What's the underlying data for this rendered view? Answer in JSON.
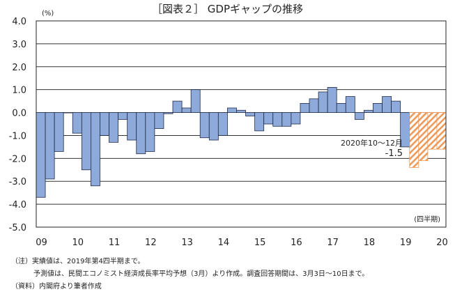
{
  "chart_data": {
    "type": "bar",
    "title": "［図表２］ GDPギャップの推移",
    "unit_label": "(%)",
    "period_label": "(四半期)",
    "ylim": [
      -5.0,
      4.0
    ],
    "yticks": [
      "4.0",
      "3.0",
      "2.0",
      "1.0",
      "0.0",
      "-1.0",
      "-2.0",
      "-3.0",
      "-4.0",
      "-5.0"
    ],
    "ytick_values": [
      4,
      3,
      2,
      1,
      0,
      -1,
      -2,
      -3,
      -4,
      -5
    ],
    "xtick_labels": [
      "09",
      "10",
      "11",
      "12",
      "13",
      "14",
      "15",
      "16",
      "17",
      "18",
      "19",
      "20"
    ],
    "series": [
      {
        "name": "実績",
        "color": "#8eaadb",
        "values": [
          -3.7,
          -2.9,
          -1.7,
          0,
          -0.9,
          -2.5,
          -3.2,
          -1.0,
          -1.3,
          -0.3,
          -1.2,
          -1.8,
          -1.7,
          -0.7,
          -0.05,
          0.5,
          0.2,
          1.0,
          -1.1,
          -1.2,
          -1.0,
          0.2,
          0.1,
          -0.15,
          -0.8,
          -0.5,
          -0.6,
          -0.6,
          -0.5,
          0.4,
          0.6,
          0.9,
          1.1,
          0.4,
          0.7,
          -0.3,
          0.1,
          0.4,
          0.7,
          0.5,
          -1.5
        ]
      },
      {
        "name": "予測",
        "color": "#f4b183",
        "pattern": "hatched",
        "values": [
          -2.4,
          -2.1,
          -1.6,
          -1.6
        ]
      }
    ],
    "annotation": {
      "label": "2020年10～12月",
      "value": "-1.5"
    },
    "grid": true
  },
  "notes": {
    "line1": "（注）実績値は、2019年第4四半期まで。",
    "line2": "予測値は、民間エコノミスト経済成長率平均予想（3月）より作成。調査回答期間は、3月3日～10日まで。",
    "line3": "（資料）内閣府より筆者作成"
  }
}
